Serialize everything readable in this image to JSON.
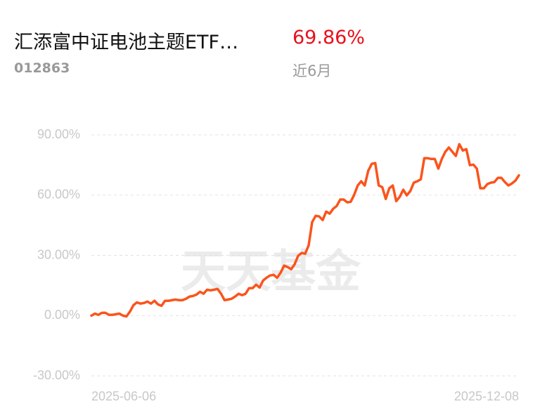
{
  "header": {
    "title": "汇添富中证电池主题ETF…",
    "return": "69.86%",
    "code": "012863",
    "period": "近6月"
  },
  "chart_data": {
    "type": "line",
    "watermark": "天天基金",
    "categories": [
      "2025-06-06",
      null,
      null,
      null,
      null,
      null,
      null,
      null,
      null,
      null,
      null,
      null,
      null,
      null,
      null,
      null,
      null,
      null,
      null,
      null,
      null,
      null,
      null,
      null,
      null,
      null,
      null,
      null,
      null,
      null,
      null,
      null,
      null,
      null,
      null,
      null,
      null,
      null,
      null,
      null,
      null,
      null,
      null,
      null,
      null,
      null,
      null,
      null,
      null,
      null,
      null,
      null,
      null,
      null,
      null,
      null,
      null,
      null,
      null,
      null,
      null,
      null,
      null,
      null,
      null,
      null,
      null,
      null,
      null,
      null,
      null,
      null,
      null,
      null,
      null,
      null,
      null,
      null,
      null,
      null,
      null,
      null,
      null,
      null,
      null,
      null,
      null,
      null,
      null,
      null,
      null,
      null,
      null,
      null,
      null,
      null,
      null,
      null,
      null,
      null,
      null,
      null,
      null,
      null,
      null,
      null,
      null,
      null,
      null,
      null,
      null,
      null,
      null,
      null,
      null,
      null,
      null,
      null,
      null,
      null,
      null,
      null,
      "2025-12-08"
    ],
    "values": [
      0,
      1,
      0.4,
      1.4,
      1.4,
      0.4,
      0.4,
      0.7,
      1,
      0,
      -0.4,
      2,
      5.2,
      6.6,
      6,
      6.3,
      7,
      6,
      7.4,
      5.6,
      4.9,
      7.4,
      7.4,
      7.7,
      8,
      7.7,
      7.7,
      8.4,
      9.5,
      9.8,
      10.5,
      11.9,
      10.9,
      12.9,
      12.6,
      12.9,
      13.3,
      10.9,
      7.7,
      8,
      8.4,
      9.5,
      10.9,
      10.2,
      10.9,
      13.7,
      13.7,
      15.4,
      14,
      17.5,
      18.9,
      20,
      20.3,
      18.9,
      21.4,
      24.9,
      24.2,
      23.1,
      25.6,
      29.8,
      31.2,
      30.8,
      35,
      46.6,
      49.7,
      49.4,
      47.6,
      51.8,
      50.8,
      53.2,
      54.6,
      57.8,
      57.8,
      56.4,
      56.7,
      60.2,
      64.8,
      66.9,
      64.8,
      72.1,
      75.6,
      76,
      64.8,
      64,
      58.1,
      63.4,
      64.8,
      57,
      59.2,
      62.7,
      59.9,
      62,
      66.2,
      66.9,
      67.9,
      78.4,
      78.4,
      78,
      78,
      73.2,
      78,
      81.6,
      83.7,
      81.6,
      79.5,
      85.4,
      82.2,
      82.9,
      74.9,
      75.2,
      73.2,
      63.4,
      63.4,
      65.5,
      66.2,
      66.5,
      68.6,
      68.6,
      66.5,
      64.8,
      65.8,
      67.2,
      69.86
    ],
    "color": "#fa541c",
    "ylim": [
      -30,
      90
    ],
    "yticks": [
      {
        "value": -30,
        "label": "-30.00%"
      },
      {
        "value": 0,
        "label": "0.00%"
      },
      {
        "value": 30,
        "label": "30.00%"
      },
      {
        "value": 60,
        "label": "60.00%"
      },
      {
        "value": 90,
        "label": "90.00%"
      }
    ],
    "grid": true
  }
}
